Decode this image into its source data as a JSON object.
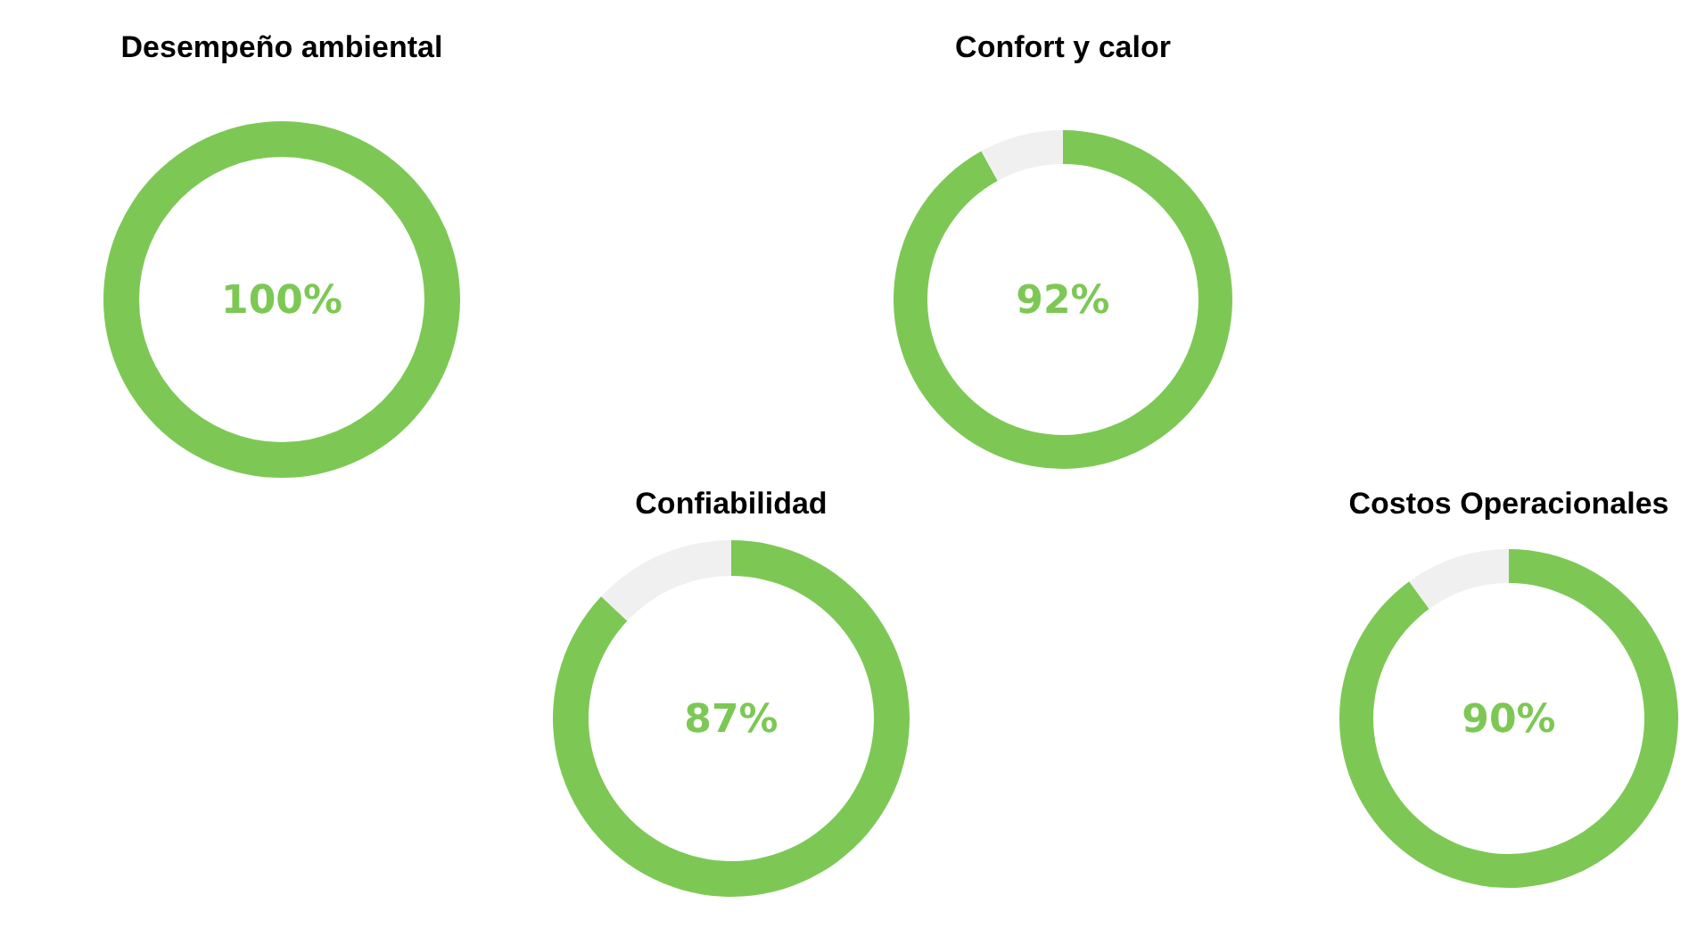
{
  "chart_data": [
    {
      "type": "donut",
      "title": "Desempeño ambiental",
      "categories": [
        null
      ],
      "values": [
        100
      ],
      "colors": [
        "#7dc855"
      ],
      "value_labels": [
        "100%"
      ]
    },
    {
      "type": "donut",
      "title": "Confort y calor",
      "categories": [
        null,
        null
      ],
      "values": [
        92,
        8
      ],
      "colors": [
        "#7dc855",
        "#f0f0f0"
      ],
      "value_labels": [
        "92%",
        null
      ]
    },
    {
      "type": "donut",
      "title": "Confiabilidad",
      "categories": [
        null,
        null
      ],
      "values": [
        87,
        13
      ],
      "colors": [
        "#7dc855",
        "#f0f0f0"
      ],
      "value_labels": [
        "87%",
        null
      ]
    },
    {
      "type": "donut",
      "title": "Costos Operacionales",
      "categories": [
        null,
        null
      ],
      "values": [
        90,
        10
      ],
      "colors": [
        "#7dc855",
        "#f0f0f0"
      ],
      "value_labels": [
        "90%",
        null
      ]
    }
  ]
}
